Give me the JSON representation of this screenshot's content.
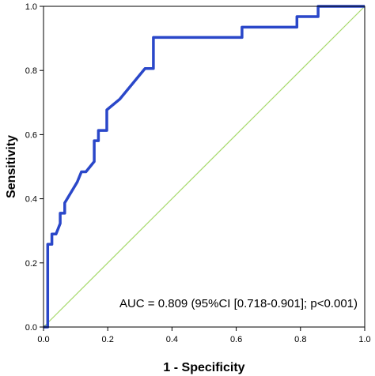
{
  "chart_data": {
    "type": "line",
    "title": "",
    "xlabel": "1 - Specificity",
    "ylabel": "Sensitivity",
    "xlim": [
      0.0,
      1.0
    ],
    "ylim": [
      0.0,
      1.0
    ],
    "x_ticks": [
      "0.0",
      "0.2",
      "0.4",
      "0.6",
      "0.8",
      "1.0"
    ],
    "y_ticks": [
      "0.0",
      "0.2",
      "0.4",
      "0.6",
      "0.8",
      "1.0"
    ],
    "grid": false,
    "annotation": "AUC = 0.809 (95%CI [0.718-0.901]; p<0.001)",
    "series": [
      {
        "color": "#2a47c9",
        "points": [
          [
            0.0,
            0.0
          ],
          [
            0.013,
            0.0
          ],
          [
            0.013,
            0.258
          ],
          [
            0.026,
            0.258
          ],
          [
            0.026,
            0.29
          ],
          [
            0.039,
            0.29
          ],
          [
            0.052,
            0.323
          ],
          [
            0.052,
            0.355
          ],
          [
            0.066,
            0.355
          ],
          [
            0.066,
            0.387
          ],
          [
            0.105,
            0.452
          ],
          [
            0.118,
            0.484
          ],
          [
            0.132,
            0.484
          ],
          [
            0.158,
            0.516
          ],
          [
            0.158,
            0.581
          ],
          [
            0.171,
            0.581
          ],
          [
            0.171,
            0.613
          ],
          [
            0.197,
            0.613
          ],
          [
            0.197,
            0.677
          ],
          [
            0.237,
            0.71
          ],
          [
            0.316,
            0.806
          ],
          [
            0.342,
            0.806
          ],
          [
            0.342,
            0.903
          ],
          [
            0.618,
            0.903
          ],
          [
            0.618,
            0.935
          ],
          [
            0.789,
            0.935
          ],
          [
            0.789,
            0.968
          ],
          [
            0.855,
            0.968
          ],
          [
            0.855,
            1.0
          ],
          [
            1.0,
            1.0
          ]
        ]
      },
      {
        "color": "#a6d96a",
        "points": [
          [
            0.0,
            0.0
          ],
          [
            1.0,
            1.0
          ]
        ]
      }
    ]
  }
}
